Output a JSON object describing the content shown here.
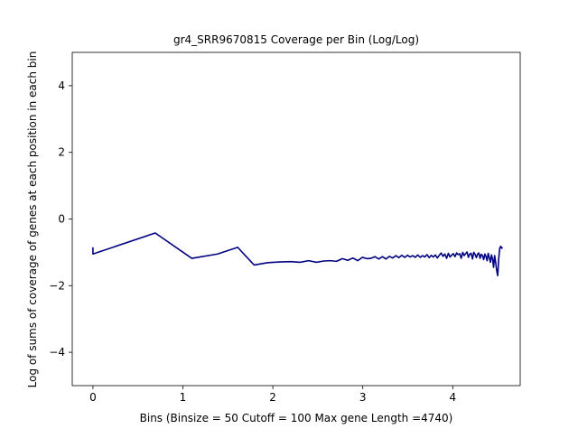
{
  "chart_data": {
    "type": "line",
    "title": "gr4_SRR9670815 Coverage per Bin (Log/Log)",
    "xlabel": "Bins  (Binsize = 50 Cutoff = 100 Max gene Length =4740)",
    "ylabel": "Log of sums of coverage of genes at each position in each bin",
    "xlim": [
      -0.23,
      4.75
    ],
    "ylim": [
      -5,
      5
    ],
    "xticks": [
      0,
      1,
      2,
      3,
      4
    ],
    "yticks": [
      -4,
      -2,
      0,
      2,
      4
    ],
    "xtick_labels": [
      "0",
      "1",
      "2",
      "3",
      "4"
    ],
    "ytick_labels": [
      "−4",
      "−2",
      "0",
      "2",
      "4"
    ],
    "grid": false,
    "line_color": "#000080",
    "series": [
      {
        "x": [
          0.0,
          0.0,
          0.693,
          1.099,
          1.386,
          1.609,
          1.792,
          1.946,
          2.079,
          2.197,
          2.303,
          2.398,
          2.485,
          2.565,
          2.639,
          2.708,
          2.773,
          2.833,
          2.89,
          2.944,
          2.996,
          3.045,
          3.091,
          3.135,
          3.178,
          3.219,
          3.258,
          3.296,
          3.332,
          3.367,
          3.401,
          3.434,
          3.466,
          3.497,
          3.526,
          3.555,
          3.584,
          3.611,
          3.638,
          3.664,
          3.689,
          3.714,
          3.738,
          3.761,
          3.784,
          3.807,
          3.829,
          3.85,
          3.871,
          3.892,
          3.912,
          3.932,
          3.951,
          3.97,
          3.989,
          4.007,
          4.025,
          4.043,
          4.06,
          4.078,
          4.094,
          4.111,
          4.127,
          4.143,
          4.159,
          4.174,
          4.19,
          4.205,
          4.22,
          4.234,
          4.248,
          4.263,
          4.277,
          4.29,
          4.304,
          4.317,
          4.331,
          4.344,
          4.357,
          4.369,
          4.382,
          4.394,
          4.407,
          4.419,
          4.431,
          4.443,
          4.454,
          4.466,
          4.477,
          4.489,
          4.5,
          4.511,
          4.522,
          4.533,
          4.543,
          4.554
        ],
        "y": [
          -0.85,
          -1.05,
          -0.42,
          -1.18,
          -1.05,
          -0.85,
          -1.38,
          -1.31,
          -1.29,
          -1.28,
          -1.3,
          -1.25,
          -1.3,
          -1.26,
          -1.25,
          -1.27,
          -1.19,
          -1.24,
          -1.17,
          -1.25,
          -1.15,
          -1.19,
          -1.18,
          -1.13,
          -1.2,
          -1.13,
          -1.2,
          -1.12,
          -1.17,
          -1.1,
          -1.16,
          -1.09,
          -1.15,
          -1.09,
          -1.14,
          -1.1,
          -1.15,
          -1.08,
          -1.15,
          -1.1,
          -1.14,
          -1.07,
          -1.16,
          -1.09,
          -1.14,
          -1.08,
          -1.17,
          -1.09,
          -1.02,
          -1.12,
          -1.05,
          -1.18,
          -1.03,
          -1.14,
          -1.08,
          -1.04,
          -1.13,
          -1.02,
          -1.07,
          -1.04,
          -1.18,
          -1.0,
          -1.1,
          -1.04,
          -0.99,
          -1.15,
          -1.05,
          -1.03,
          -1.2,
          -1.0,
          -1.06,
          -1.16,
          -1.05,
          -1.02,
          -1.18,
          -1.06,
          -1.1,
          -1.22,
          -1.05,
          -1.12,
          -1.25,
          -1.03,
          -1.16,
          -1.3,
          -1.08,
          -1.2,
          -1.45,
          -1.1,
          -1.3,
          -1.55,
          -1.7,
          -1.2,
          -0.88,
          -0.82,
          -0.88,
          -0.85
        ]
      }
    ]
  }
}
